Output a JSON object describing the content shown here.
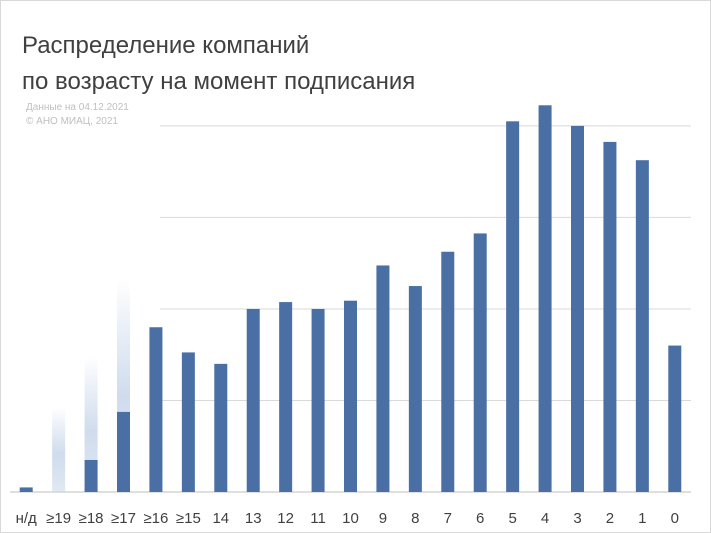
{
  "chart_data": {
    "type": "bar",
    "title_lines": [
      "Распределение компаний",
      "по возрасту на момент подписания"
    ],
    "source_lines": [
      "Данные на 04.12.2021",
      "© АНО МИАЦ, 2021"
    ],
    "categories": [
      "н/д",
      "≥19",
      "≥18",
      "≥17",
      "≥16",
      "≥15",
      "14",
      "13",
      "12",
      "11",
      "10",
      "9",
      "8",
      "7",
      "6",
      "5",
      "4",
      "3",
      "2",
      "1",
      "0"
    ],
    "series": [
      {
        "values": [
          1,
          0,
          7,
          17.5,
          36,
          30.5,
          28,
          40,
          41.5,
          40,
          41.8,
          49.5,
          45,
          52.5,
          56.5,
          81,
          84.5,
          80,
          76.5,
          72.5,
          32
        ],
        "color": "#4a6fa5"
      }
    ],
    "ghost_values": [
      0,
      18.5,
      29.5,
      46.5,
      18.5,
      0.5,
      0,
      0,
      0,
      0,
      0,
      0,
      0,
      0,
      0,
      0,
      0,
      0,
      0,
      0,
      0
    ],
    "ylim": [
      0,
      85
    ],
    "gridlines": [
      0,
      20,
      40,
      60,
      80
    ],
    "xlabel": "",
    "ylabel": ""
  }
}
